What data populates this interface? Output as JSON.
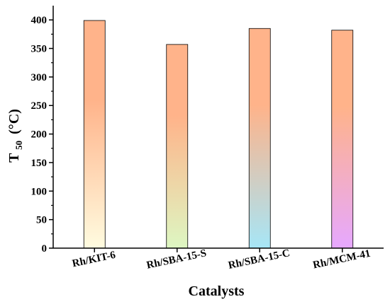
{
  "chart_data": {
    "type": "bar",
    "categories": [
      "Rh/KIT-6",
      "Rh/SBA-15-S",
      "Rh/SBA-15-C",
      "Rh/MCM-41"
    ],
    "values": [
      399,
      357,
      385,
      382
    ],
    "xlabel": "Catalysts",
    "ylabel": {
      "main": "T",
      "sub": "50",
      "unit": "(°C)"
    },
    "ylim": [
      0,
      425
    ],
    "yticks": [
      0,
      50,
      100,
      150,
      200,
      250,
      300,
      350,
      400
    ],
    "grid": false,
    "bar_gradients": [
      {
        "top": "#ffb38a",
        "bottom": "#fffce0"
      },
      {
        "top": "#ffb38a",
        "bottom": "#ddf7c2"
      },
      {
        "top": "#ffb38a",
        "bottom": "#a6e6f7"
      },
      {
        "top": "#ffb38a",
        "bottom": "#e6a8ff"
      }
    ]
  }
}
